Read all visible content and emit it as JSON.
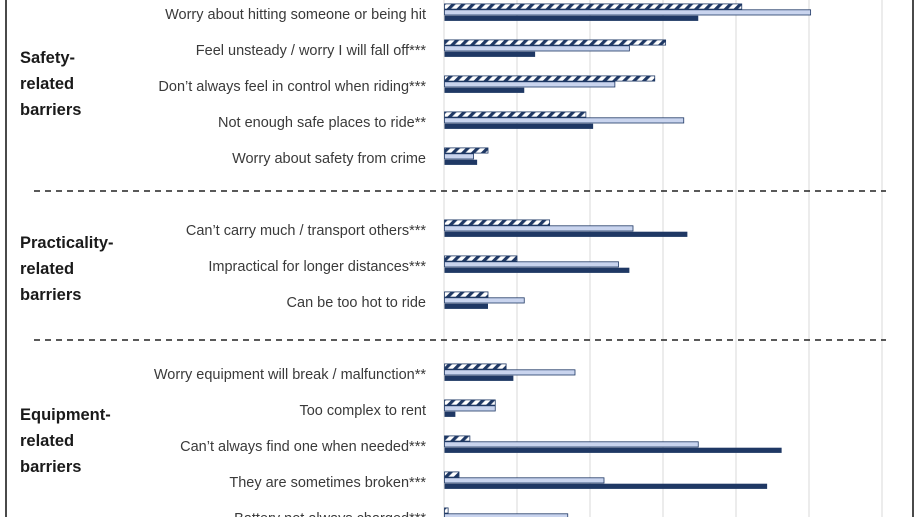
{
  "chart_data": {
    "type": "bar",
    "orientation": "horizontal",
    "x_max": 100,
    "grid": true,
    "series": [
      {
        "style": "hatched",
        "color": "#1f3864"
      },
      {
        "style": "light",
        "color": "#c9d4ee"
      },
      {
        "style": "solid",
        "color": "#1f3864"
      },
      {
        "style": "medium",
        "color": "#4a6fba"
      }
    ],
    "groups": [
      {
        "label_lines": [
          "Safety-",
          "related",
          "barriers"
        ],
        "items": [
          {
            "label": "Worry about hitting someone or being hit",
            "values": [
              41,
              50.5,
              35
            ]
          },
          {
            "label": "Feel unsteady / worry I will fall off***",
            "values": [
              30.5,
              25.5,
              12.5
            ]
          },
          {
            "label": "Don’t always feel in control when riding***",
            "values": [
              29,
              23.5,
              11
            ]
          },
          {
            "label": "Not enough safe places to ride**",
            "values": [
              19.5,
              33,
              20.5
            ]
          },
          {
            "label": "Worry about safety from crime",
            "values": [
              6,
              4,
              4.5
            ]
          }
        ]
      },
      {
        "label_lines": [
          "Practicality-",
          "related",
          "barriers"
        ],
        "items": [
          {
            "label": "Can’t carry much / transport others***",
            "values": [
              14.5,
              26,
              33.5
            ]
          },
          {
            "label": "Impractical for longer distances***",
            "values": [
              10,
              24,
              25.5
            ]
          },
          {
            "label": "Can be too hot to ride",
            "values": [
              6,
              11,
              6
            ]
          }
        ]
      },
      {
        "label_lines": [
          "Equipment-",
          "related",
          "barriers"
        ],
        "items": [
          {
            "label": "Worry equipment will break / malfunction**",
            "values": [
              8.5,
              18,
              9.5
            ]
          },
          {
            "label": "Too complex to rent",
            "values": [
              7,
              7,
              1.5
            ]
          },
          {
            "label": "Can’t always find one when needed***",
            "values": [
              3.5,
              35,
              46.5
            ]
          },
          {
            "label": "They are sometimes broken***",
            "values": [
              2,
              22,
              44.5
            ]
          },
          {
            "label": "Battery not always charged***",
            "values": [
              0.5,
              17,
              0
            ]
          }
        ]
      }
    ]
  }
}
